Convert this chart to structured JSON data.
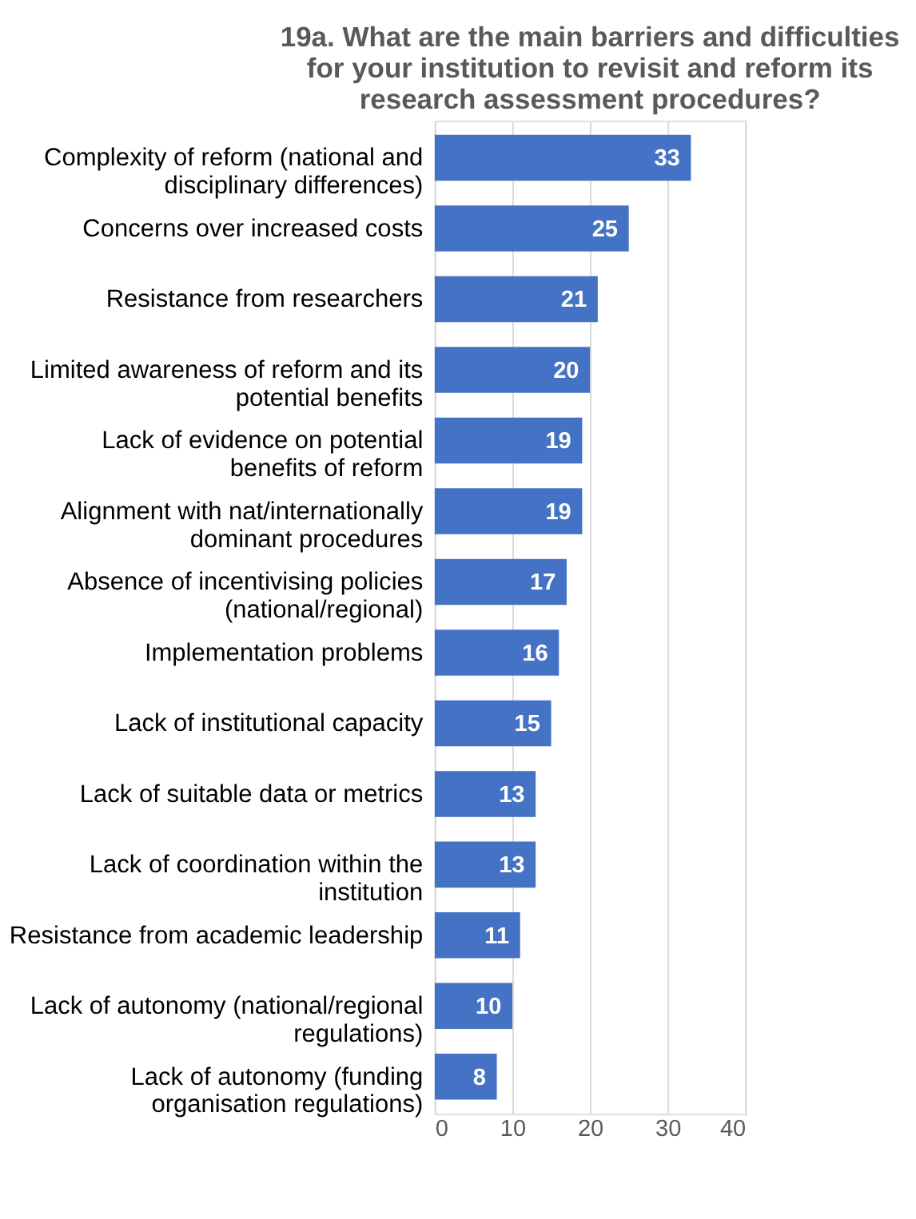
{
  "chart_data": {
    "type": "bar",
    "orientation": "horizontal",
    "title": "19a. What are the main barriers and difficulties for your institution to revisit and reform its research assessment procedures?",
    "categories": [
      "Complexity of reform (national and disciplinary differences)",
      "Concerns over increased costs",
      "Resistance from researchers",
      "Limited awareness of reform and its potential benefits",
      "Lack of evidence on potential benefits of reform",
      "Alignment with nat/internationally dominant procedures",
      "Absence of incentivising policies (national/regional)",
      "Implementation problems",
      "Lack of institutional capacity",
      "Lack of suitable data or metrics",
      "Lack of coordination within the institution",
      "Resistance from academic leadership",
      "Lack of autonomy (national/regional regulations)",
      "Lack of autonomy (funding organisation regulations)"
    ],
    "values": [
      33,
      25,
      21,
      20,
      19,
      19,
      17,
      16,
      15,
      13,
      13,
      11,
      10,
      8
    ],
    "color": "#4472c4",
    "xlim": [
      0,
      40
    ],
    "xticks": [
      0,
      10,
      20,
      30,
      40
    ],
    "grid": "x",
    "data_labels": true
  }
}
